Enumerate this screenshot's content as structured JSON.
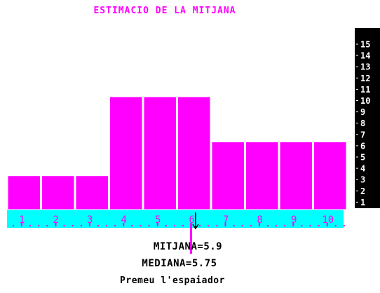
{
  "title": "ESTIMACIO DE LA MITJANA",
  "colors": {
    "background": "#ffffff",
    "bar": "#ff00ff",
    "bar_border": "#ffffff",
    "axis_band": "#00ffff",
    "axis_text": "#ff00ff",
    "scale_background": "#000000",
    "scale_text": "#ffffff",
    "text": "#000000"
  },
  "chart_data": {
    "type": "bar",
    "categories": [
      "1",
      "2",
      "3",
      "4",
      "5",
      "6",
      "7",
      "8",
      "9",
      "10"
    ],
    "values": [
      3,
      3,
      3,
      10,
      10,
      10,
      6,
      6,
      6,
      6
    ],
    "ylim": [
      0,
      15
    ],
    "y_ticks": [
      "1",
      "2",
      "3",
      "4",
      "5",
      "6",
      "7",
      "8",
      "9",
      "10",
      "11",
      "12",
      "13",
      "14",
      "15"
    ],
    "mean_value": 5.9
  },
  "results": {
    "mean_label": "MITJANA=5.9",
    "median_label": "MEDIANA=5.75",
    "prompt": "Premeu l'espaiador"
  }
}
